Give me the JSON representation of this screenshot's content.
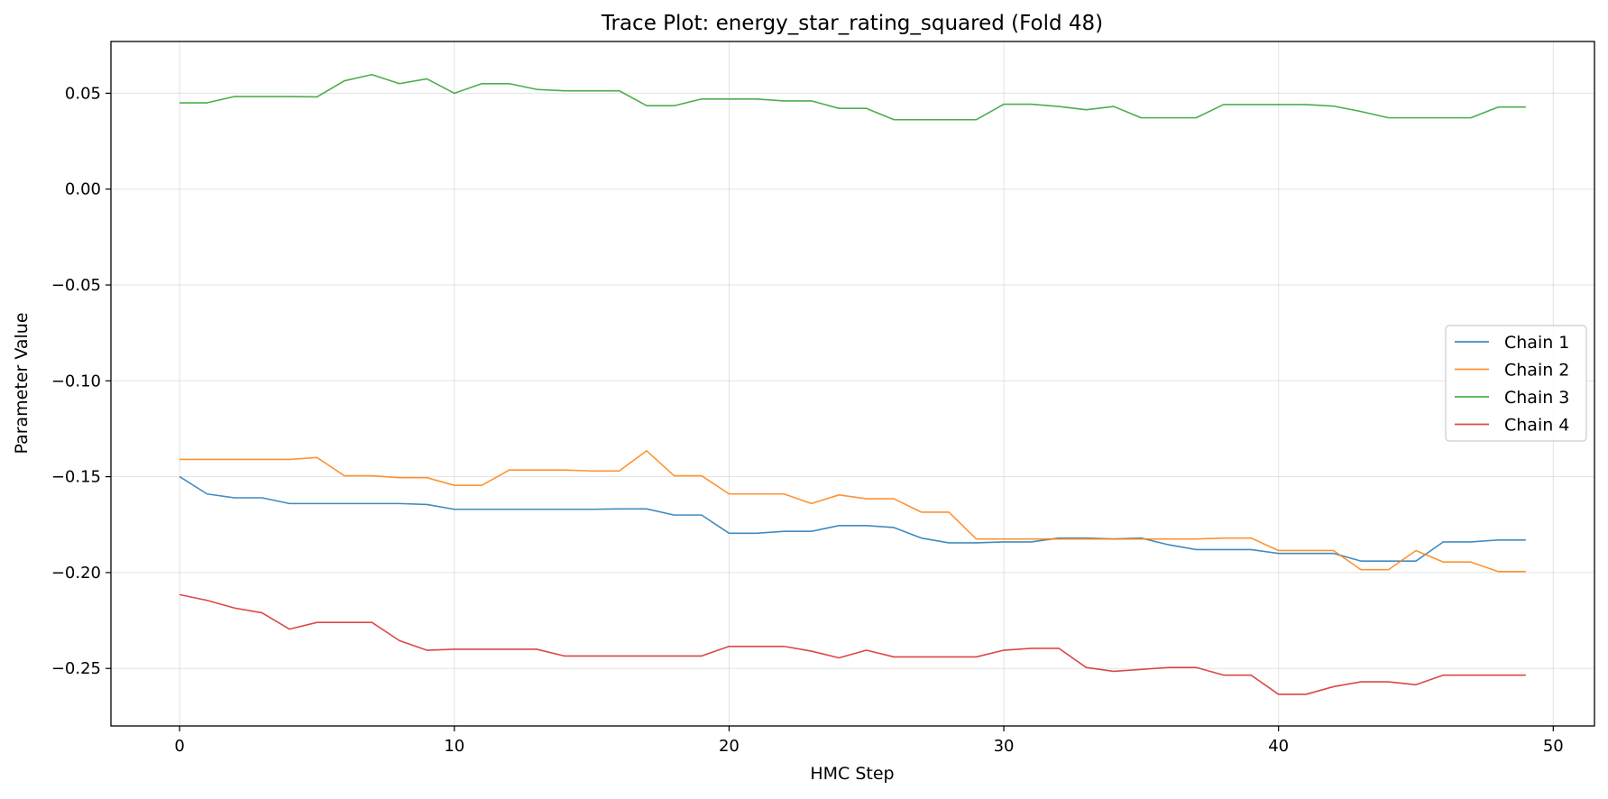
{
  "chart_data": {
    "type": "line",
    "title": "Trace Plot: energy_star_rating_squared (Fold 48)",
    "xlabel": "HMC Step",
    "ylabel": "Parameter Value",
    "xlim": [
      -2.5,
      51.5
    ],
    "ylim": [
      -0.28,
      0.077
    ],
    "xticks": [
      0,
      10,
      20,
      30,
      40,
      50
    ],
    "xtick_labels": [
      "0",
      "10",
      "20",
      "30",
      "40",
      "50"
    ],
    "yticks": [
      0.05,
      0.0,
      -0.05,
      -0.1,
      -0.15,
      -0.2,
      -0.25
    ],
    "ytick_labels": [
      "0.05",
      "0.00",
      "−0.05",
      "−0.10",
      "−0.15",
      "−0.20",
      "−0.25"
    ],
    "grid": true,
    "legend_position": "center-right",
    "x": [
      0,
      1,
      2,
      3,
      4,
      5,
      6,
      7,
      8,
      9,
      10,
      11,
      12,
      13,
      14,
      15,
      16,
      17,
      18,
      19,
      20,
      21,
      22,
      23,
      24,
      25,
      26,
      27,
      28,
      29,
      30,
      31,
      32,
      33,
      34,
      35,
      36,
      37,
      38,
      39,
      40,
      41,
      42,
      43,
      44,
      45,
      46,
      47,
      48,
      49
    ],
    "series": [
      {
        "name": "Chain 1",
        "color": "#1f77b4",
        "values": [
          -0.15,
          -0.159,
          -0.161,
          -0.161,
          -0.164,
          -0.164,
          -0.164,
          -0.164,
          -0.164,
          -0.1645,
          -0.167,
          -0.167,
          -0.167,
          -0.167,
          -0.167,
          -0.167,
          -0.1668,
          -0.1668,
          -0.17,
          -0.17,
          -0.1795,
          -0.1795,
          -0.1785,
          -0.1785,
          -0.1755,
          -0.1755,
          -0.1765,
          -0.182,
          -0.1845,
          -0.1845,
          -0.184,
          -0.184,
          -0.182,
          -0.182,
          -0.1825,
          -0.182,
          -0.1855,
          -0.188,
          -0.188,
          -0.188,
          -0.19,
          -0.19,
          -0.19,
          -0.194,
          -0.194,
          -0.194,
          -0.184,
          -0.184,
          -0.183,
          -0.183
        ]
      },
      {
        "name": "Chain 2",
        "color": "#ff7f0e",
        "values": [
          -0.141,
          -0.141,
          -0.141,
          -0.141,
          -0.141,
          -0.14,
          -0.1495,
          -0.1495,
          -0.1505,
          -0.1505,
          -0.1545,
          -0.1545,
          -0.1465,
          -0.1465,
          -0.1465,
          -0.147,
          -0.147,
          -0.1365,
          -0.1495,
          -0.1495,
          -0.159,
          -0.159,
          -0.159,
          -0.164,
          -0.1595,
          -0.1615,
          -0.1615,
          -0.1685,
          -0.1685,
          -0.1825,
          -0.1825,
          -0.1825,
          -0.1825,
          -0.1825,
          -0.1825,
          -0.1825,
          -0.1825,
          -0.1825,
          -0.182,
          -0.182,
          -0.1885,
          -0.1885,
          -0.1885,
          -0.1985,
          -0.1985,
          -0.1885,
          -0.1945,
          -0.1945,
          -0.1995,
          -0.1995
        ]
      },
      {
        "name": "Chain 3",
        "color": "#2ca02c",
        "values": [
          0.045,
          0.045,
          0.0483,
          0.0483,
          0.0483,
          0.0481,
          0.0565,
          0.0597,
          0.055,
          0.0575,
          0.05,
          0.055,
          0.055,
          0.052,
          0.0513,
          0.0513,
          0.0513,
          0.0435,
          0.0435,
          0.047,
          0.047,
          0.047,
          0.046,
          0.046,
          0.0421,
          0.0421,
          0.0362,
          0.0362,
          0.0362,
          0.0362,
          0.0443,
          0.0443,
          0.0431,
          0.0414,
          0.0431,
          0.0372,
          0.0372,
          0.0372,
          0.0441,
          0.0441,
          0.0441,
          0.0441,
          0.0433,
          0.0405,
          0.0372,
          0.0372,
          0.0372,
          0.0372,
          0.0428,
          0.0428
        ]
      },
      {
        "name": "Chain 4",
        "color": "#d62728",
        "values": [
          -0.2115,
          -0.2145,
          -0.2185,
          -0.221,
          -0.2295,
          -0.226,
          -0.226,
          -0.226,
          -0.2355,
          -0.2405,
          -0.24,
          -0.24,
          -0.24,
          -0.24,
          -0.2435,
          -0.2435,
          -0.2435,
          -0.2435,
          -0.2435,
          -0.2435,
          -0.2385,
          -0.2385,
          -0.2385,
          -0.241,
          -0.2445,
          -0.2405,
          -0.244,
          -0.244,
          -0.244,
          -0.244,
          -0.2405,
          -0.2395,
          -0.2395,
          -0.2495,
          -0.2515,
          -0.2505,
          -0.2495,
          -0.2495,
          -0.2535,
          -0.2535,
          -0.2635,
          -0.2635,
          -0.2595,
          -0.257,
          -0.257,
          -0.2585,
          -0.2535,
          -0.2535,
          -0.2535,
          -0.2535
        ]
      }
    ]
  }
}
